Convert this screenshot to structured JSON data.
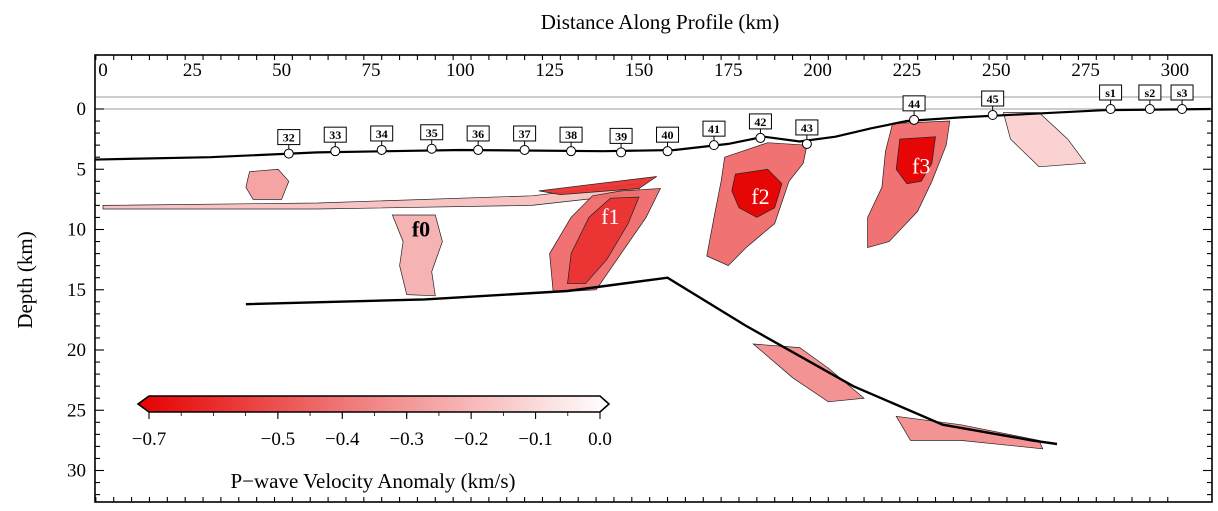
{
  "chart_data": {
    "type": "heatmap",
    "title": "Distance Along Profile (km)",
    "xlabel": "Distance Along Profile (km)",
    "ylabel": "Depth (km)",
    "xlim": [
      -3,
      310
    ],
    "ylim": [
      0,
      33
    ],
    "x_ticks": [
      "0",
      "25",
      "50",
      "75",
      "100",
      "125",
      "150",
      "175",
      "200",
      "225",
      "250",
      "275",
      "300"
    ],
    "x_tick_values": [
      0,
      25,
      50,
      75,
      100,
      125,
      150,
      175,
      200,
      225,
      250,
      275,
      300
    ],
    "y_ticks": [
      "0",
      "5",
      "10",
      "15",
      "20",
      "25",
      "30"
    ],
    "y_tick_values": [
      0,
      5,
      10,
      15,
      20,
      25,
      30
    ],
    "grid": false,
    "colorbar": {
      "label": "P−wave Velocity Anomaly (km/s)",
      "ticks": [
        "−0.7",
        "−0.5",
        "−0.4",
        "−0.3",
        "−0.2",
        "−0.1",
        "0.0"
      ],
      "tick_values": [
        -0.7,
        -0.5,
        -0.4,
        -0.3,
        -0.2,
        -0.1,
        0.0
      ],
      "range": [
        -0.7,
        0.0
      ],
      "color_min": "#e60000",
      "color_max": "#ffffff",
      "placement": "bottom-left"
    },
    "stations": [
      {
        "name": "32",
        "x": 52,
        "depth": 3.7
      },
      {
        "name": "33",
        "x": 65,
        "depth": 3.5
      },
      {
        "name": "34",
        "x": 78,
        "depth": 3.4
      },
      {
        "name": "35",
        "x": 92,
        "depth": 3.3
      },
      {
        "name": "36",
        "x": 105,
        "depth": 3.4
      },
      {
        "name": "37",
        "x": 118,
        "depth": 3.4
      },
      {
        "name": "38",
        "x": 131,
        "depth": 3.5
      },
      {
        "name": "39",
        "x": 145,
        "depth": 3.6
      },
      {
        "name": "40",
        "x": 158,
        "depth": 3.5
      },
      {
        "name": "41",
        "x": 171,
        "depth": 3.0
      },
      {
        "name": "42",
        "x": 184,
        "depth": 2.4
      },
      {
        "name": "43",
        "x": 197,
        "depth": 2.9
      },
      {
        "name": "44",
        "x": 227,
        "depth": 0.9
      },
      {
        "name": "45",
        "x": 249,
        "depth": 0.5
      },
      {
        "name": "s1",
        "x": 282,
        "depth": 0.0
      },
      {
        "name": "s2",
        "x": 293,
        "depth": 0.0
      },
      {
        "name": "s3",
        "x": 302,
        "depth": 0.0
      }
    ],
    "features": [
      {
        "name": "f0",
        "x": 89,
        "depth": 9.9,
        "color": "#000000"
      },
      {
        "name": "f1",
        "x": 142,
        "depth": 8.9,
        "color": "#ffffff"
      },
      {
        "name": "f2",
        "x": 184,
        "depth": 7.2,
        "color": "#ffffff"
      },
      {
        "name": "f3",
        "x": 229,
        "depth": 4.7,
        "color": "#ffffff"
      }
    ],
    "seafloor": [
      [
        -3,
        4.2
      ],
      [
        30,
        4.0
      ],
      [
        60,
        3.6
      ],
      [
        100,
        3.4
      ],
      [
        140,
        3.5
      ],
      [
        160,
        3.4
      ],
      [
        175,
        2.9
      ],
      [
        185,
        2.3
      ],
      [
        195,
        2.7
      ],
      [
        205,
        2.3
      ],
      [
        215,
        1.6
      ],
      [
        225,
        1.0
      ],
      [
        240,
        0.7
      ],
      [
        260,
        0.4
      ],
      [
        280,
        0.1
      ],
      [
        310,
        0.0
      ]
    ],
    "slab_interface": [
      [
        40,
        16.2
      ],
      [
        90,
        15.8
      ],
      [
        130,
        15.1
      ],
      [
        158,
        14.0
      ],
      [
        180,
        18.0
      ],
      [
        210,
        23.0
      ],
      [
        235,
        26.2
      ],
      [
        260,
        27.5
      ],
      [
        267,
        27.8
      ]
    ],
    "anomalies": [
      {
        "name": "f0-body",
        "value": -0.25,
        "poly": [
          [
            81,
            8.8
          ],
          [
            93,
            8.8
          ],
          [
            95,
            11.0
          ],
          [
            92,
            13.5
          ],
          [
            93,
            15.5
          ],
          [
            85,
            15.4
          ],
          [
            83,
            13.0
          ],
          [
            84,
            11.0
          ]
        ]
      },
      {
        "name": "f0-top-blob",
        "value": -0.3,
        "poly": [
          [
            41,
            5.2
          ],
          [
            49,
            5.0
          ],
          [
            52,
            6.0
          ],
          [
            50,
            7.5
          ],
          [
            42,
            7.5
          ],
          [
            40,
            6.5
          ]
        ]
      },
      {
        "name": "shallow-layer",
        "value": -0.2,
        "poly": [
          [
            0,
            8.0
          ],
          [
            60,
            7.8
          ],
          [
            120,
            7.2
          ],
          [
            150,
            6.2
          ],
          [
            150,
            7.0
          ],
          [
            120,
            8.0
          ],
          [
            60,
            8.3
          ],
          [
            0,
            8.3
          ]
        ]
      },
      {
        "name": "layer-strong",
        "value": -0.6,
        "poly": [
          [
            122,
            6.8
          ],
          [
            130,
            6.5
          ],
          [
            155,
            5.6
          ],
          [
            150,
            6.6
          ],
          [
            128,
            7.1
          ]
        ]
      },
      {
        "name": "f1-body",
        "value": -0.45,
        "poly": [
          [
            145,
            6.8
          ],
          [
            156,
            6.6
          ],
          [
            152,
            9.0
          ],
          [
            145,
            12.0
          ],
          [
            138,
            15.0
          ],
          [
            126,
            15.2
          ],
          [
            125,
            12.0
          ],
          [
            131,
            9.0
          ],
          [
            137,
            7.2
          ]
        ]
      },
      {
        "name": "f1-core",
        "value": -0.6,
        "poly": [
          [
            142,
            7.4
          ],
          [
            150,
            7.3
          ],
          [
            147,
            9.5
          ],
          [
            141,
            12.5
          ],
          [
            135,
            14.5
          ],
          [
            130,
            14.5
          ],
          [
            131,
            12.0
          ],
          [
            136,
            9.0
          ]
        ]
      },
      {
        "name": "f2-body",
        "value": -0.45,
        "poly": [
          [
            174,
            4.0
          ],
          [
            186,
            2.8
          ],
          [
            197,
            3.0
          ],
          [
            196,
            4.5
          ],
          [
            192,
            6.0
          ],
          [
            188,
            9.5
          ],
          [
            180,
            11.5
          ],
          [
            175,
            13.0
          ],
          [
            169,
            12.2
          ],
          [
            171,
            9.0
          ],
          [
            173,
            6.0
          ]
        ]
      },
      {
        "name": "f2-core",
        "value": -0.7,
        "poly": [
          [
            177,
            5.4
          ],
          [
            186,
            5.0
          ],
          [
            190,
            6.2
          ],
          [
            188,
            8.2
          ],
          [
            183,
            9.0
          ],
          [
            178,
            8.2
          ],
          [
            176,
            6.8
          ]
        ]
      },
      {
        "name": "f3-body",
        "value": -0.45,
        "poly": [
          [
            221,
            1.2
          ],
          [
            237,
            1.0
          ],
          [
            236,
            3.0
          ],
          [
            232,
            6.0
          ],
          [
            228,
            8.5
          ],
          [
            220,
            11.0
          ],
          [
            214,
            11.5
          ],
          [
            214,
            9.0
          ],
          [
            218,
            6.5
          ],
          [
            219,
            3.5
          ]
        ]
      },
      {
        "name": "f3-core",
        "value": -0.7,
        "poly": [
          [
            223,
            2.5
          ],
          [
            233,
            2.3
          ],
          [
            232,
            4.5
          ],
          [
            229,
            6.0
          ],
          [
            225,
            6.2
          ],
          [
            222,
            5.0
          ]
        ]
      },
      {
        "name": "east-upper",
        "value": -0.15,
        "poly": [
          [
            252,
            0.3
          ],
          [
            262,
            0.3
          ],
          [
            270,
            2.5
          ],
          [
            275,
            4.5
          ],
          [
            262,
            4.8
          ],
          [
            254,
            2.5
          ]
        ]
      },
      {
        "name": "slab-upper",
        "value": -0.35,
        "poly": [
          [
            182,
            19.5
          ],
          [
            195,
            19.8
          ],
          [
            203,
            21.5
          ],
          [
            213,
            24.0
          ],
          [
            203,
            24.3
          ],
          [
            193,
            22.3
          ]
        ]
      },
      {
        "name": "slab-lower",
        "value": -0.35,
        "poly": [
          [
            222,
            25.5
          ],
          [
            240,
            26.2
          ],
          [
            262,
            27.5
          ],
          [
            263,
            28.2
          ],
          [
            240,
            27.5
          ],
          [
            226,
            27.5
          ]
        ]
      }
    ]
  }
}
